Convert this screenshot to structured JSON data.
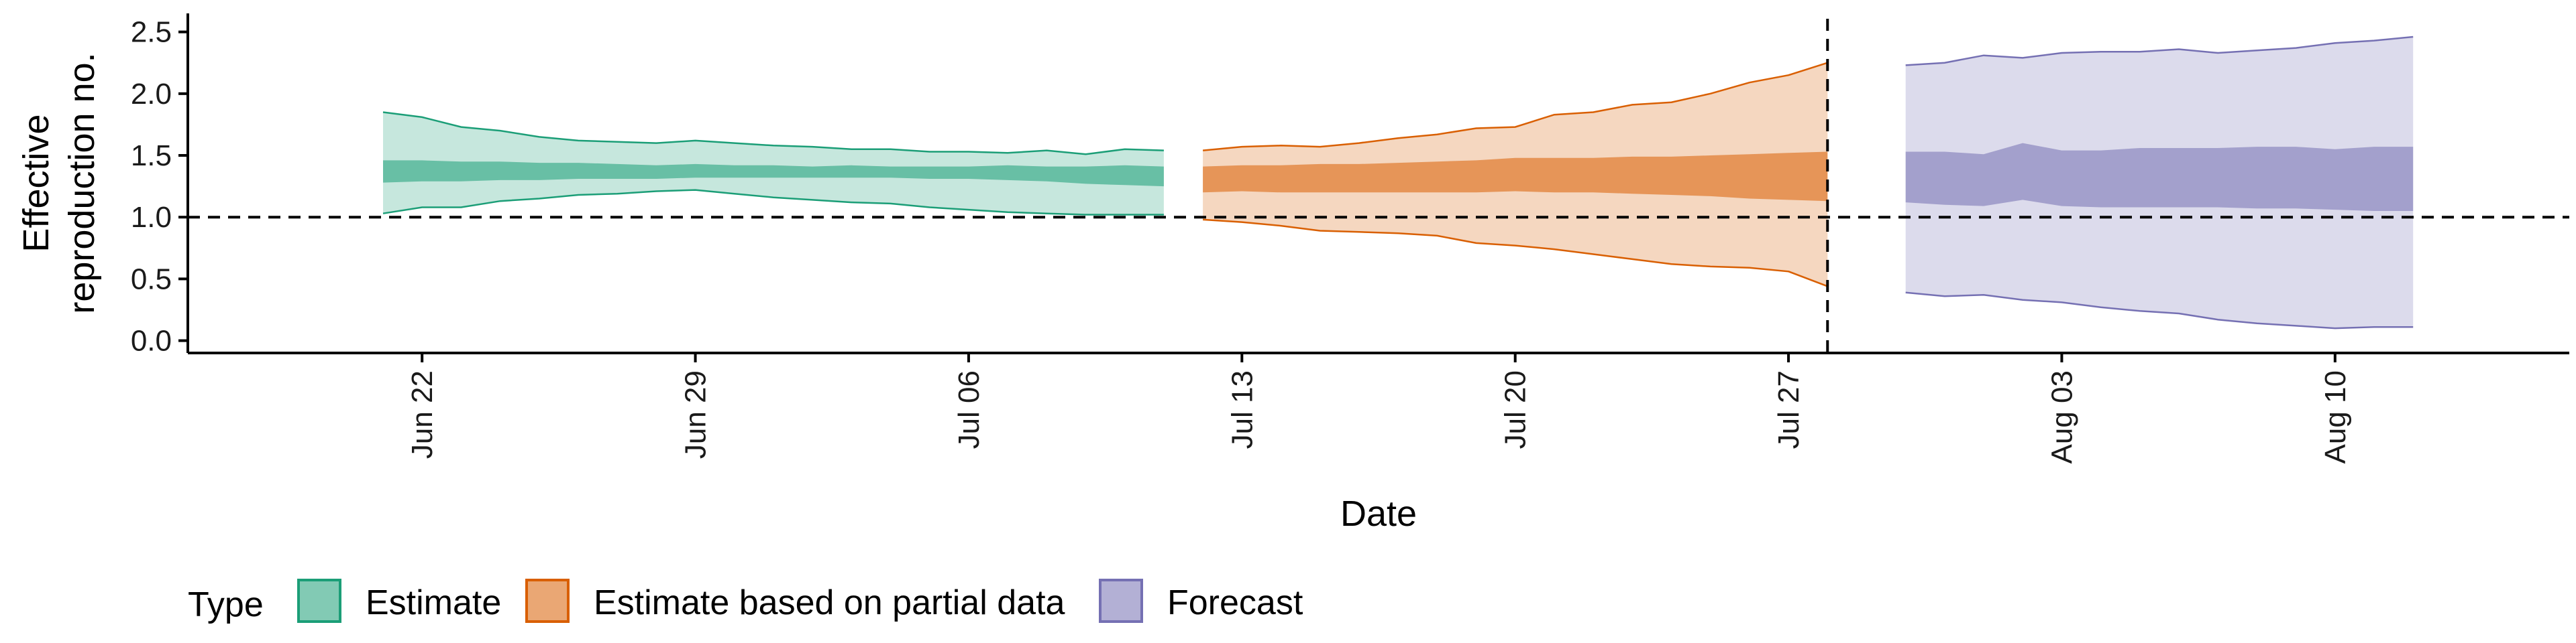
{
  "chart_data": {
    "type": "area",
    "title": "",
    "xlabel": "Date",
    "ylabel_line1": "Effective",
    "ylabel_line2": "reproduction no.",
    "ylim": [
      -0.1,
      2.65
    ],
    "xlim": [
      "2022-06-16",
      "2022-08-16"
    ],
    "y_ticks": [
      0.0,
      0.5,
      1.0,
      1.5,
      2.0,
      2.5
    ],
    "y_tick_labels": [
      "0.0",
      "0.5",
      "1.0",
      "1.5",
      "2.0",
      "2.5"
    ],
    "x_ticks": [
      "2022-06-22",
      "2022-06-29",
      "2022-07-06",
      "2022-07-13",
      "2022-07-20",
      "2022-07-27",
      "2022-08-03",
      "2022-08-10"
    ],
    "x_tick_labels": [
      "Jun 22",
      "Jun 29",
      "Jul 06",
      "Jul 13",
      "Jul 20",
      "Jul 27",
      "Aug 03",
      "Aug 10"
    ],
    "reference_line_y": 1.0,
    "vertical_line_x": "2022-07-28",
    "grid": false,
    "legend_title": "Type",
    "legend_position": "bottom",
    "series": [
      {
        "name": "Estimate",
        "color": "#1b9e77",
        "x": [
          "2022-06-21",
          "2022-06-22",
          "2022-06-23",
          "2022-06-24",
          "2022-06-25",
          "2022-06-26",
          "2022-06-27",
          "2022-06-28",
          "2022-06-29",
          "2022-06-30",
          "2022-07-01",
          "2022-07-02",
          "2022-07-03",
          "2022-07-04",
          "2022-07-05",
          "2022-07-06",
          "2022-07-07",
          "2022-07-08",
          "2022-07-09",
          "2022-07-10",
          "2022-07-11"
        ],
        "upper90": [
          1.85,
          1.81,
          1.73,
          1.7,
          1.65,
          1.62,
          1.61,
          1.6,
          1.62,
          1.6,
          1.58,
          1.57,
          1.55,
          1.55,
          1.53,
          1.53,
          1.52,
          1.54,
          1.51,
          1.55,
          1.54
        ],
        "upper50": [
          1.46,
          1.46,
          1.45,
          1.45,
          1.44,
          1.44,
          1.43,
          1.42,
          1.43,
          1.42,
          1.42,
          1.41,
          1.42,
          1.41,
          1.41,
          1.41,
          1.42,
          1.41,
          1.41,
          1.42,
          1.41
        ],
        "lower50": [
          1.28,
          1.29,
          1.29,
          1.3,
          1.3,
          1.31,
          1.31,
          1.31,
          1.32,
          1.32,
          1.32,
          1.32,
          1.32,
          1.32,
          1.31,
          1.31,
          1.3,
          1.29,
          1.27,
          1.26,
          1.25
        ],
        "lower90": [
          1.03,
          1.08,
          1.08,
          1.13,
          1.15,
          1.18,
          1.19,
          1.21,
          1.22,
          1.19,
          1.16,
          1.14,
          1.12,
          1.11,
          1.08,
          1.06,
          1.04,
          1.03,
          1.02,
          1.02,
          1.02
        ]
      },
      {
        "name": "Estimate based on partial data",
        "color": "#d95f02",
        "x": [
          "2022-07-12",
          "2022-07-13",
          "2022-07-14",
          "2022-07-15",
          "2022-07-16",
          "2022-07-17",
          "2022-07-18",
          "2022-07-19",
          "2022-07-20",
          "2022-07-21",
          "2022-07-22",
          "2022-07-23",
          "2022-07-24",
          "2022-07-25",
          "2022-07-26",
          "2022-07-27",
          "2022-07-28"
        ],
        "upper90": [
          1.54,
          1.57,
          1.58,
          1.57,
          1.6,
          1.64,
          1.67,
          1.72,
          1.73,
          1.83,
          1.85,
          1.91,
          1.93,
          2.0,
          2.09,
          2.15,
          2.25
        ],
        "upper50": [
          1.41,
          1.42,
          1.42,
          1.43,
          1.43,
          1.44,
          1.45,
          1.46,
          1.48,
          1.48,
          1.48,
          1.49,
          1.49,
          1.5,
          1.51,
          1.52,
          1.53
        ],
        "lower50": [
          1.2,
          1.21,
          1.2,
          1.2,
          1.2,
          1.2,
          1.2,
          1.2,
          1.21,
          1.2,
          1.2,
          1.19,
          1.18,
          1.17,
          1.15,
          1.14,
          1.13
        ],
        "lower90": [
          0.98,
          0.96,
          0.93,
          0.89,
          0.88,
          0.87,
          0.85,
          0.79,
          0.77,
          0.74,
          0.7,
          0.66,
          0.62,
          0.6,
          0.59,
          0.56,
          0.44
        ]
      },
      {
        "name": "Forecast",
        "color": "#7570b3",
        "x": [
          "2022-07-30",
          "2022-07-31",
          "2022-08-01",
          "2022-08-02",
          "2022-08-03",
          "2022-08-04",
          "2022-08-05",
          "2022-08-06",
          "2022-08-07",
          "2022-08-08",
          "2022-08-09",
          "2022-08-10",
          "2022-08-11",
          "2022-08-12"
        ],
        "upper90": [
          2.23,
          2.25,
          2.31,
          2.29,
          2.33,
          2.34,
          2.34,
          2.36,
          2.33,
          2.35,
          2.37,
          2.41,
          2.43,
          2.46
        ],
        "upper50": [
          1.53,
          1.53,
          1.51,
          1.6,
          1.54,
          1.54,
          1.56,
          1.56,
          1.56,
          1.57,
          1.57,
          1.55,
          1.57,
          1.57
        ],
        "lower50": [
          1.12,
          1.1,
          1.09,
          1.14,
          1.09,
          1.08,
          1.08,
          1.08,
          1.08,
          1.07,
          1.07,
          1.06,
          1.05,
          1.05
        ],
        "lower90": [
          0.39,
          0.36,
          0.37,
          0.33,
          0.31,
          0.27,
          0.24,
          0.22,
          0.17,
          0.14,
          0.12,
          0.1,
          0.11,
          0.11
        ]
      }
    ]
  }
}
